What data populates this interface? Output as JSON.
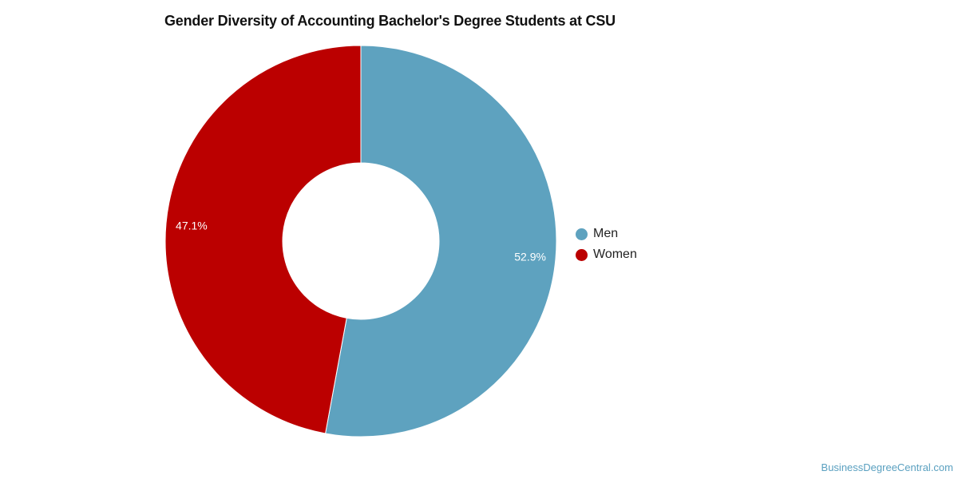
{
  "chart_data": {
    "type": "pie",
    "title": "Gender Diversity of Accounting Bachelor's Degree Students at CSU",
    "donut": true,
    "categories": [
      "Men",
      "Women"
    ],
    "values": [
      52.9,
      47.1
    ],
    "value_labels": [
      "52.9%",
      "47.1%"
    ],
    "colors": [
      "#5ea2bf",
      "#bb0000"
    ],
    "legend_position": "right"
  },
  "legend": {
    "items": [
      {
        "label": "Men",
        "color": "#5ea2bf"
      },
      {
        "label": "Women",
        "color": "#bb0000"
      }
    ]
  },
  "watermark": "BusinessDegreeCentral.com"
}
